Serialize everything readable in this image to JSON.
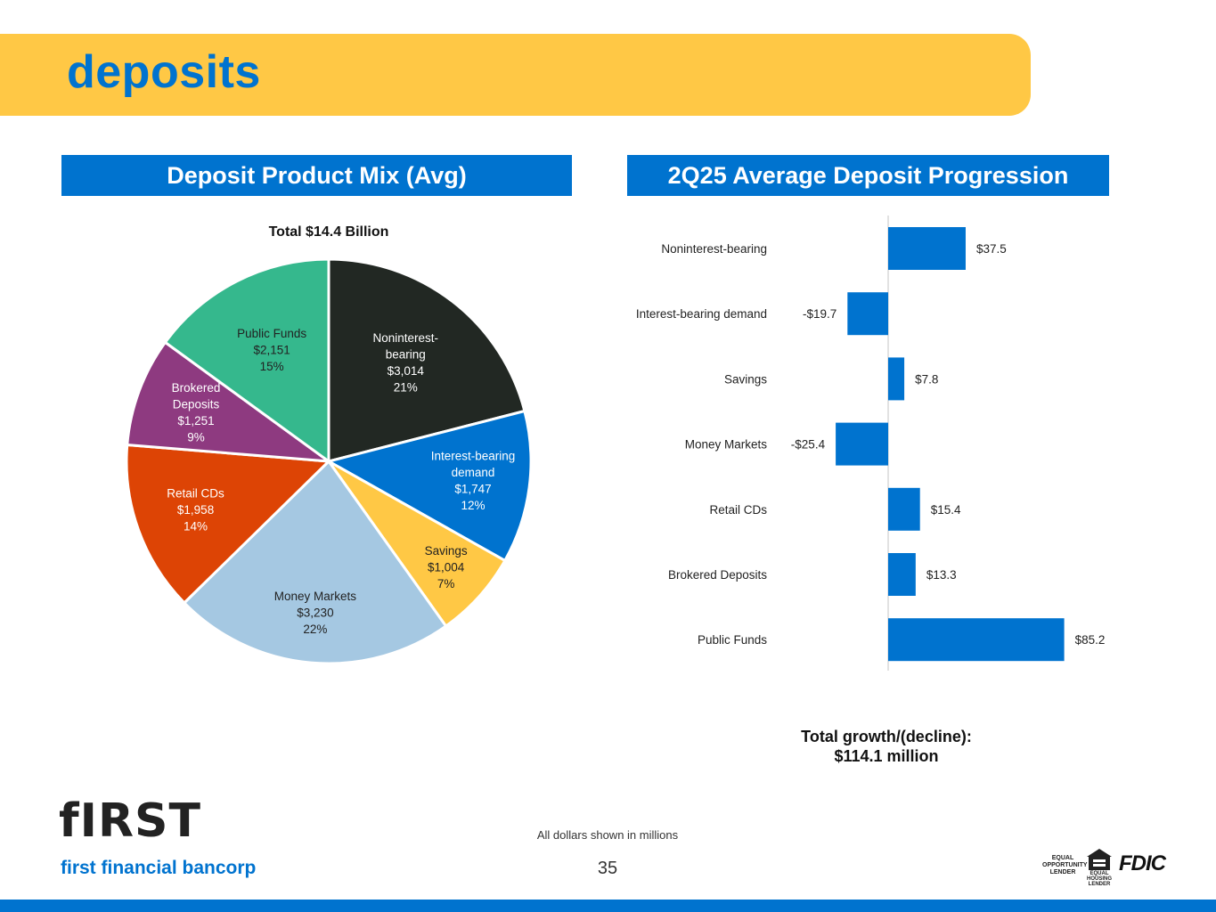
{
  "header": {
    "title": "deposits"
  },
  "colors": {
    "accent": "#0073CF",
    "band": "#FFC845",
    "noninterest": "#222823",
    "interest_demand": "#0073CF",
    "savings": "#FFC845",
    "money_markets": "#A5C8E2",
    "retail_cds": "#DD4405",
    "brokered": "#8E3A80",
    "public_funds": "#35B88D"
  },
  "chart_data": [
    {
      "type": "pie",
      "header": "Deposit Product Mix (Avg)",
      "title": "Total $14.4 Billion",
      "slices": [
        {
          "name": "Noninterest-bearing",
          "label_lines": [
            "Noninterest-",
            "bearing",
            "$3,014",
            "21%"
          ],
          "value": 3014,
          "color": "#222823",
          "text_color": "#ffffff"
        },
        {
          "name": "Interest-bearing demand",
          "label_lines": [
            "Interest-bearing",
            "demand",
            "$1,747",
            "12%"
          ],
          "value": 1747,
          "color": "#0073CF",
          "text_color": "#ffffff"
        },
        {
          "name": "Savings",
          "label_lines": [
            "Savings",
            "$1,004",
            "7%"
          ],
          "value": 1004,
          "color": "#FFC845",
          "text_color": "#222222"
        },
        {
          "name": "Money Markets",
          "label_lines": [
            "Money Markets",
            "$3,230",
            "22%"
          ],
          "value": 3230,
          "color": "#A5C8E2",
          "text_color": "#222222"
        },
        {
          "name": "Retail CDs",
          "label_lines": [
            "Retail CDs",
            "$1,958",
            "14%"
          ],
          "value": 1958,
          "color": "#DD4405",
          "text_color": "#ffffff"
        },
        {
          "name": "Brokered Deposits",
          "label_lines": [
            "Brokered",
            "Deposits",
            "$1,251",
            "9%"
          ],
          "value": 1251,
          "color": "#8E3A80",
          "text_color": "#ffffff"
        },
        {
          "name": "Public Funds",
          "label_lines": [
            "Public Funds",
            "$2,151",
            "15%"
          ],
          "value": 2151,
          "color": "#35B88D",
          "text_color": "#222222"
        }
      ]
    },
    {
      "type": "bar",
      "orientation": "horizontal",
      "header": "2Q25 Average Deposit Progression",
      "categories": [
        "Noninterest-bearing",
        "Interest-bearing demand",
        "Savings",
        "Money Markets",
        "Retail CDs",
        "Brokered Deposits",
        "Public Funds"
      ],
      "values": [
        37.5,
        -19.7,
        7.8,
        -25.4,
        15.4,
        13.3,
        85.2
      ],
      "value_labels": [
        "$37.5",
        "-$19.7",
        "$7.8",
        "-$25.4",
        "$15.4",
        "$13.3",
        "$85.2"
      ],
      "xlim": [
        -40,
        100
      ],
      "color": "#0073CF"
    }
  ],
  "summary": {
    "line1": "Total growth/(decline):",
    "line2": "$114.1 million"
  },
  "footer": {
    "note": "All dollars shown in millions",
    "page_number": "35",
    "logo_mark": "fIRST",
    "logo_sub": "first financial bancorp",
    "eol_text": "EQUAL OPPORTUNITY LENDER",
    "ehl_text": "EQUAL HOUSING LENDER",
    "fdic": "FDIC"
  }
}
